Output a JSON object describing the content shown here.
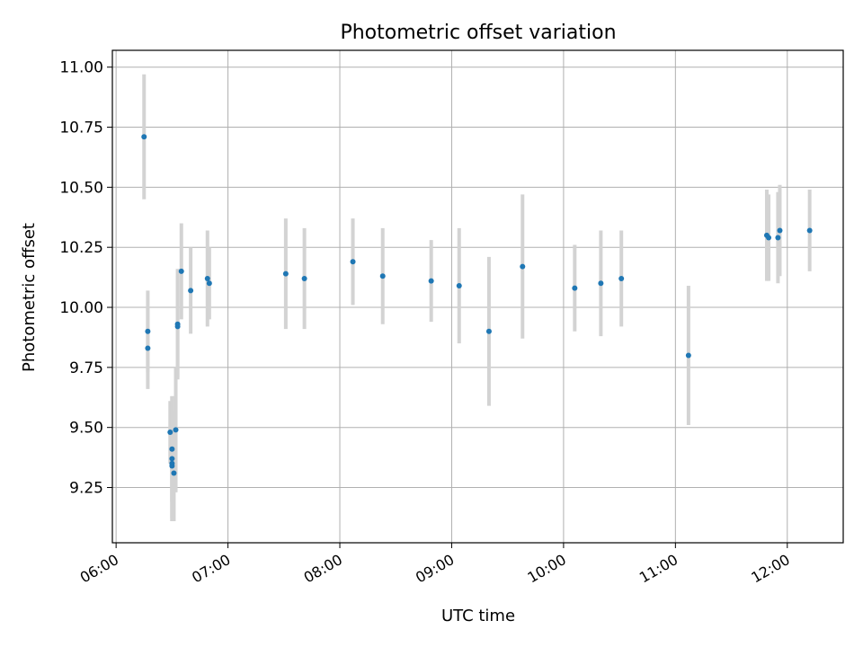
{
  "chart_data": {
    "type": "scatter",
    "title": "Photometric offset variation",
    "xlabel": "UTC time",
    "ylabel": "Photometric offset",
    "xlim": [
      "05:58",
      "12:30"
    ],
    "ylim": [
      9.02,
      11.07
    ],
    "x_ticks": [
      "06:00",
      "07:00",
      "08:00",
      "09:00",
      "10:00",
      "11:00",
      "12:00"
    ],
    "y_ticks": [
      "9.25",
      "9.50",
      "9.75",
      "10.00",
      "10.25",
      "10.50",
      "10.75",
      "11.00"
    ],
    "grid": true,
    "marker_color": "#1f77b4",
    "errorbar_color": "#d3d3d3",
    "points": [
      {
        "time": "06:15",
        "y": 10.71,
        "err": 0.26
      },
      {
        "time": "06:17",
        "y": 9.9,
        "err": 0.17
      },
      {
        "time": "06:17",
        "y": 9.83,
        "err": 0.17
      },
      {
        "time": "06:29",
        "y": 9.48,
        "err": 0.13
      },
      {
        "time": "06:30",
        "y": 9.41,
        "err": 0.22
      },
      {
        "time": "06:30",
        "y": 9.37,
        "err": 0.26
      },
      {
        "time": "06:30",
        "y": 9.35,
        "err": 0.23
      },
      {
        "time": "06:30",
        "y": 9.34,
        "err": 0.23
      },
      {
        "time": "06:31",
        "y": 9.31,
        "err": 0.2
      },
      {
        "time": "06:32",
        "y": 9.49,
        "err": 0.26
      },
      {
        "time": "06:33",
        "y": 9.92,
        "err": 0.21
      },
      {
        "time": "06:33",
        "y": 9.93,
        "err": 0.23
      },
      {
        "time": "06:35",
        "y": 10.15,
        "err": 0.2
      },
      {
        "time": "06:40",
        "y": 10.07,
        "err": 0.18
      },
      {
        "time": "06:49",
        "y": 10.12,
        "err": 0.2
      },
      {
        "time": "06:50",
        "y": 10.1,
        "err": 0.15
      },
      {
        "time": "07:31",
        "y": 10.14,
        "err": 0.23
      },
      {
        "time": "07:41",
        "y": 10.12,
        "err": 0.21
      },
      {
        "time": "08:07",
        "y": 10.19,
        "err": 0.18
      },
      {
        "time": "08:23",
        "y": 10.13,
        "err": 0.2
      },
      {
        "time": "08:49",
        "y": 10.11,
        "err": 0.17
      },
      {
        "time": "09:04",
        "y": 10.09,
        "err": 0.24
      },
      {
        "time": "09:20",
        "y": 9.9,
        "err": 0.31
      },
      {
        "time": "09:38",
        "y": 10.17,
        "err": 0.3
      },
      {
        "time": "10:06",
        "y": 10.08,
        "err": 0.18
      },
      {
        "time": "10:20",
        "y": 10.1,
        "err": 0.22
      },
      {
        "time": "10:31",
        "y": 10.12,
        "err": 0.2
      },
      {
        "time": "11:07",
        "y": 9.8,
        "err": 0.29
      },
      {
        "time": "11:49",
        "y": 10.3,
        "err": 0.19
      },
      {
        "time": "11:50",
        "y": 10.29,
        "err": 0.18
      },
      {
        "time": "11:55",
        "y": 10.29,
        "err": 0.19
      },
      {
        "time": "11:56",
        "y": 10.32,
        "err": 0.19
      },
      {
        "time": "12:12",
        "y": 10.32,
        "err": 0.17
      }
    ]
  }
}
